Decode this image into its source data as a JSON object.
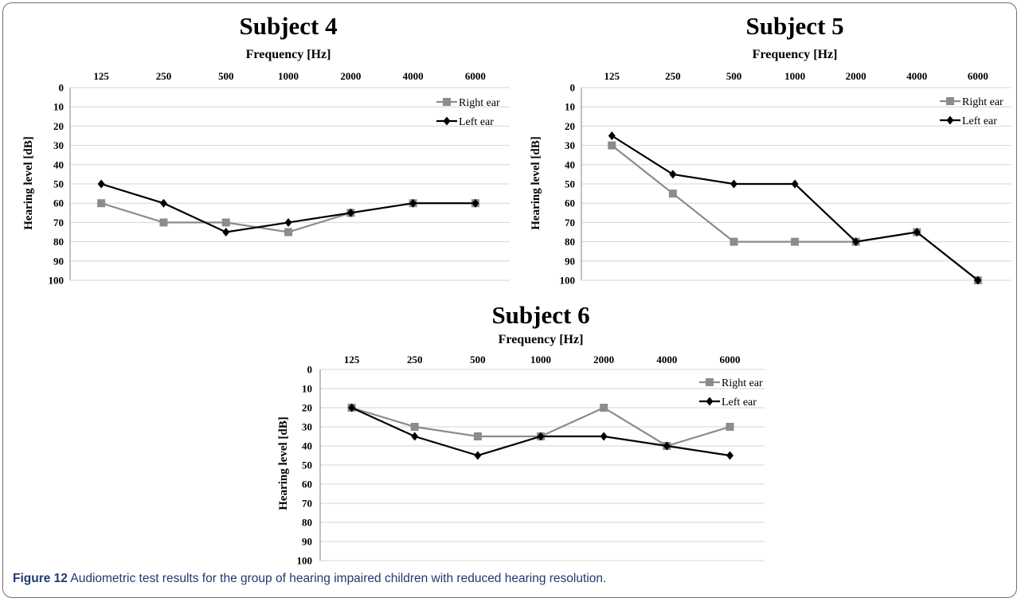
{
  "caption": {
    "label": "Figure 12",
    "text": "Audiometric test results for the group of hearing impaired children with reduced hearing resolution."
  },
  "colors": {
    "right_ear": "#8c8c8c",
    "left_ear": "#000000",
    "caption": "#1f3a70"
  },
  "chart_data": [
    {
      "type": "line",
      "title": "Subject 4",
      "xlabel": "Frequency [Hz]",
      "ylabel": "Hearing level [dB]",
      "categories": [
        "125",
        "250",
        "500",
        "1000",
        "2000",
        "4000",
        "6000"
      ],
      "yticks": [
        "0",
        "10",
        "20",
        "30",
        "40",
        "50",
        "60",
        "70",
        "80",
        "90",
        "100"
      ],
      "ylim": [
        0,
        100
      ],
      "y_inverted": true,
      "x_axis_position": "top",
      "legend_position": "top-right",
      "grid": true,
      "series": [
        {
          "name": "Right ear",
          "marker": "square",
          "values": [
            60,
            70,
            70,
            75,
            65,
            60,
            60
          ]
        },
        {
          "name": "Left ear",
          "marker": "diamond",
          "values": [
            50,
            60,
            75,
            70,
            65,
            60,
            60
          ]
        }
      ]
    },
    {
      "type": "line",
      "title": "Subject 5",
      "xlabel": "Frequency [Hz]",
      "ylabel": "Hearing level [dB]",
      "categories": [
        "125",
        "250",
        "500",
        "1000",
        "2000",
        "4000",
        "6000"
      ],
      "yticks": [
        "0",
        "10",
        "20",
        "30",
        "40",
        "50",
        "60",
        "70",
        "80",
        "90",
        "100"
      ],
      "ylim": [
        0,
        100
      ],
      "y_inverted": true,
      "x_axis_position": "top",
      "legend_position": "top-right",
      "grid": true,
      "series": [
        {
          "name": "Right ear",
          "marker": "square",
          "values": [
            30,
            55,
            80,
            80,
            80,
            75,
            100
          ]
        },
        {
          "name": "Left ear",
          "marker": "diamond",
          "values": [
            25,
            45,
            50,
            50,
            80,
            75,
            100
          ]
        }
      ]
    },
    {
      "type": "line",
      "title": "Subject 6",
      "xlabel": "Frequency [Hz]",
      "ylabel": "Hearing level [dB]",
      "categories": [
        "125",
        "250",
        "500",
        "1000",
        "2000",
        "4000",
        "6000"
      ],
      "yticks": [
        "0",
        "10",
        "20",
        "30",
        "40",
        "50",
        "60",
        "70",
        "80",
        "90",
        "100"
      ],
      "ylim": [
        0,
        100
      ],
      "y_inverted": true,
      "x_axis_position": "top",
      "legend_position": "top-right",
      "grid": true,
      "series": [
        {
          "name": "Right ear",
          "marker": "square",
          "values": [
            20,
            30,
            35,
            35,
            20,
            40,
            30
          ]
        },
        {
          "name": "Left ear",
          "marker": "diamond",
          "values": [
            20,
            35,
            45,
            35,
            35,
            40,
            45
          ]
        }
      ]
    }
  ]
}
